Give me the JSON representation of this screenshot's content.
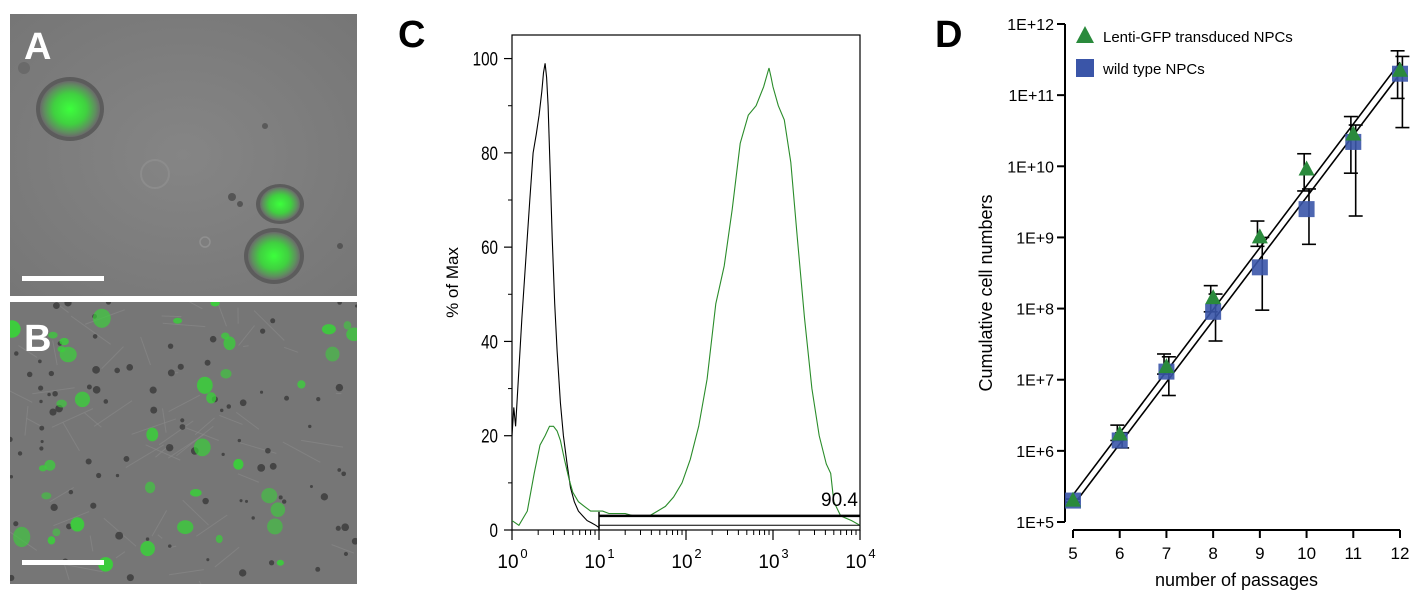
{
  "panels": {
    "a": {
      "label": "A"
    },
    "b": {
      "label": "B"
    },
    "c": {
      "label": "C"
    },
    "d": {
      "label": "D"
    }
  },
  "chart_data": [
    {
      "panel": "C",
      "type": "line",
      "ylabel": "% of Max",
      "xlabel": "",
      "xscale": "log",
      "xlim": [
        1,
        10000
      ],
      "ylim": [
        0,
        105
      ],
      "yticks": [
        0,
        20,
        40,
        60,
        80,
        100
      ],
      "xtick_labels": [
        {
          "base": "10",
          "exp": "0"
        },
        {
          "base": "10",
          "exp": "1"
        },
        {
          "base": "10",
          "exp": "2"
        },
        {
          "base": "10",
          "exp": "3"
        },
        {
          "base": "10",
          "exp": "4"
        }
      ],
      "gate": {
        "from": 10,
        "to": 10000,
        "value_label": "90.4"
      },
      "series": [
        {
          "color": "#000000",
          "x": [
            1.0,
            1.05,
            1.1,
            1.2,
            1.3,
            1.45,
            1.6,
            1.75,
            1.9,
            2.05,
            2.2,
            2.3,
            2.4,
            2.5,
            2.6,
            2.75,
            2.9,
            3.1,
            3.3,
            3.6,
            3.9,
            4.3,
            4.7,
            5.2,
            5.8,
            6.5,
            7.3,
            8.2,
            9.2,
            10.0
          ],
          "y": [
            20,
            26,
            22,
            34,
            45,
            58,
            70,
            80,
            84,
            88,
            93,
            97,
            99,
            96,
            90,
            76,
            62,
            48,
            38,
            27,
            20,
            14,
            9,
            6,
            4,
            3,
            2,
            1.5,
            1,
            0.5
          ]
        },
        {
          "color": "#2a8c2a",
          "x": [
            1.0,
            1.2,
            1.5,
            1.8,
            2.1,
            2.4,
            2.7,
            3.0,
            3.3,
            3.6,
            4.0,
            4.5,
            5.0,
            5.8,
            6.8,
            8.0,
            9.5,
            11,
            13,
            16,
            20,
            25,
            31,
            38,
            47,
            58,
            72,
            90,
            112,
            140,
            175,
            220,
            275,
            340,
            420,
            520,
            640,
            780,
            900,
            950,
            1000,
            1150,
            1350,
            1600,
            1900,
            2300,
            2800,
            3400,
            4100,
            4600,
            5000,
            6000,
            8000,
            10000
          ],
          "y": [
            2,
            1,
            4,
            12,
            18,
            20,
            22,
            22,
            21,
            19,
            15,
            11,
            8,
            6,
            5,
            4,
            4,
            4,
            3.5,
            3.5,
            3.5,
            3,
            3,
            3,
            4,
            5,
            7,
            10,
            15,
            22,
            32,
            48,
            56,
            68,
            82,
            88,
            90,
            94,
            98,
            96,
            94,
            90,
            87,
            78,
            62,
            45,
            30,
            20,
            14,
            12,
            6,
            3,
            2,
            1
          ]
        }
      ]
    },
    {
      "panel": "D",
      "type": "scatter",
      "xlabel": "number of passages",
      "ylabel": "Cumulative cell numbers",
      "yscale": "log",
      "xlim": [
        5,
        12
      ],
      "ylim": [
        100000,
        1000000000000
      ],
      "xticks": [
        5,
        6,
        7,
        8,
        9,
        10,
        11,
        12
      ],
      "ytick_labels": [
        "1E+5",
        "1E+6",
        "1E+7",
        "1E+8",
        "1E+9",
        "1E+10",
        "1E+11",
        "1E+12"
      ],
      "legend_position": "top-left",
      "series": [
        {
          "name": "Lenti-GFP transduced NPCs",
          "color": "#2a8a3c",
          "marker": "triangle",
          "x": [
            5,
            6,
            7,
            8,
            9,
            10,
            11,
            12
          ],
          "y": [
            200000,
            1700000,
            15000000,
            140000000,
            1000000000,
            9000000000,
            28000000000,
            220000000000
          ],
          "err_low": [
            190000,
            1400000,
            12000000,
            90000000,
            750000000,
            4500000000,
            8000000000,
            90000000000
          ],
          "err_high": [
            210000,
            2300000,
            23000000,
            210000000,
            1700000000,
            15000000000,
            50000000000,
            420000000000
          ]
        },
        {
          "name": "wild type NPCs",
          "color": "#3a55a8",
          "marker": "square",
          "x": [
            5,
            6,
            7,
            8,
            9,
            10,
            11,
            12
          ],
          "y": [
            200000,
            1400000,
            13000000,
            90000000,
            380000000,
            2500000000,
            22000000000,
            200000000000
          ],
          "err_low": [
            190000,
            1100000,
            6000000,
            35000000,
            95000000,
            800000000,
            2000000000,
            35000000000
          ],
          "err_high": [
            210000,
            1800000,
            21000000,
            160000000,
            1000000000,
            4800000000,
            38000000000,
            350000000000
          ]
        }
      ],
      "fit_lines": [
        {
          "x": [
            5,
            12
          ],
          "y": [
            240000,
            290000000000
          ]
        },
        {
          "x": [
            5,
            12
          ],
          "y": [
            170000,
            200000000000
          ]
        }
      ]
    }
  ]
}
